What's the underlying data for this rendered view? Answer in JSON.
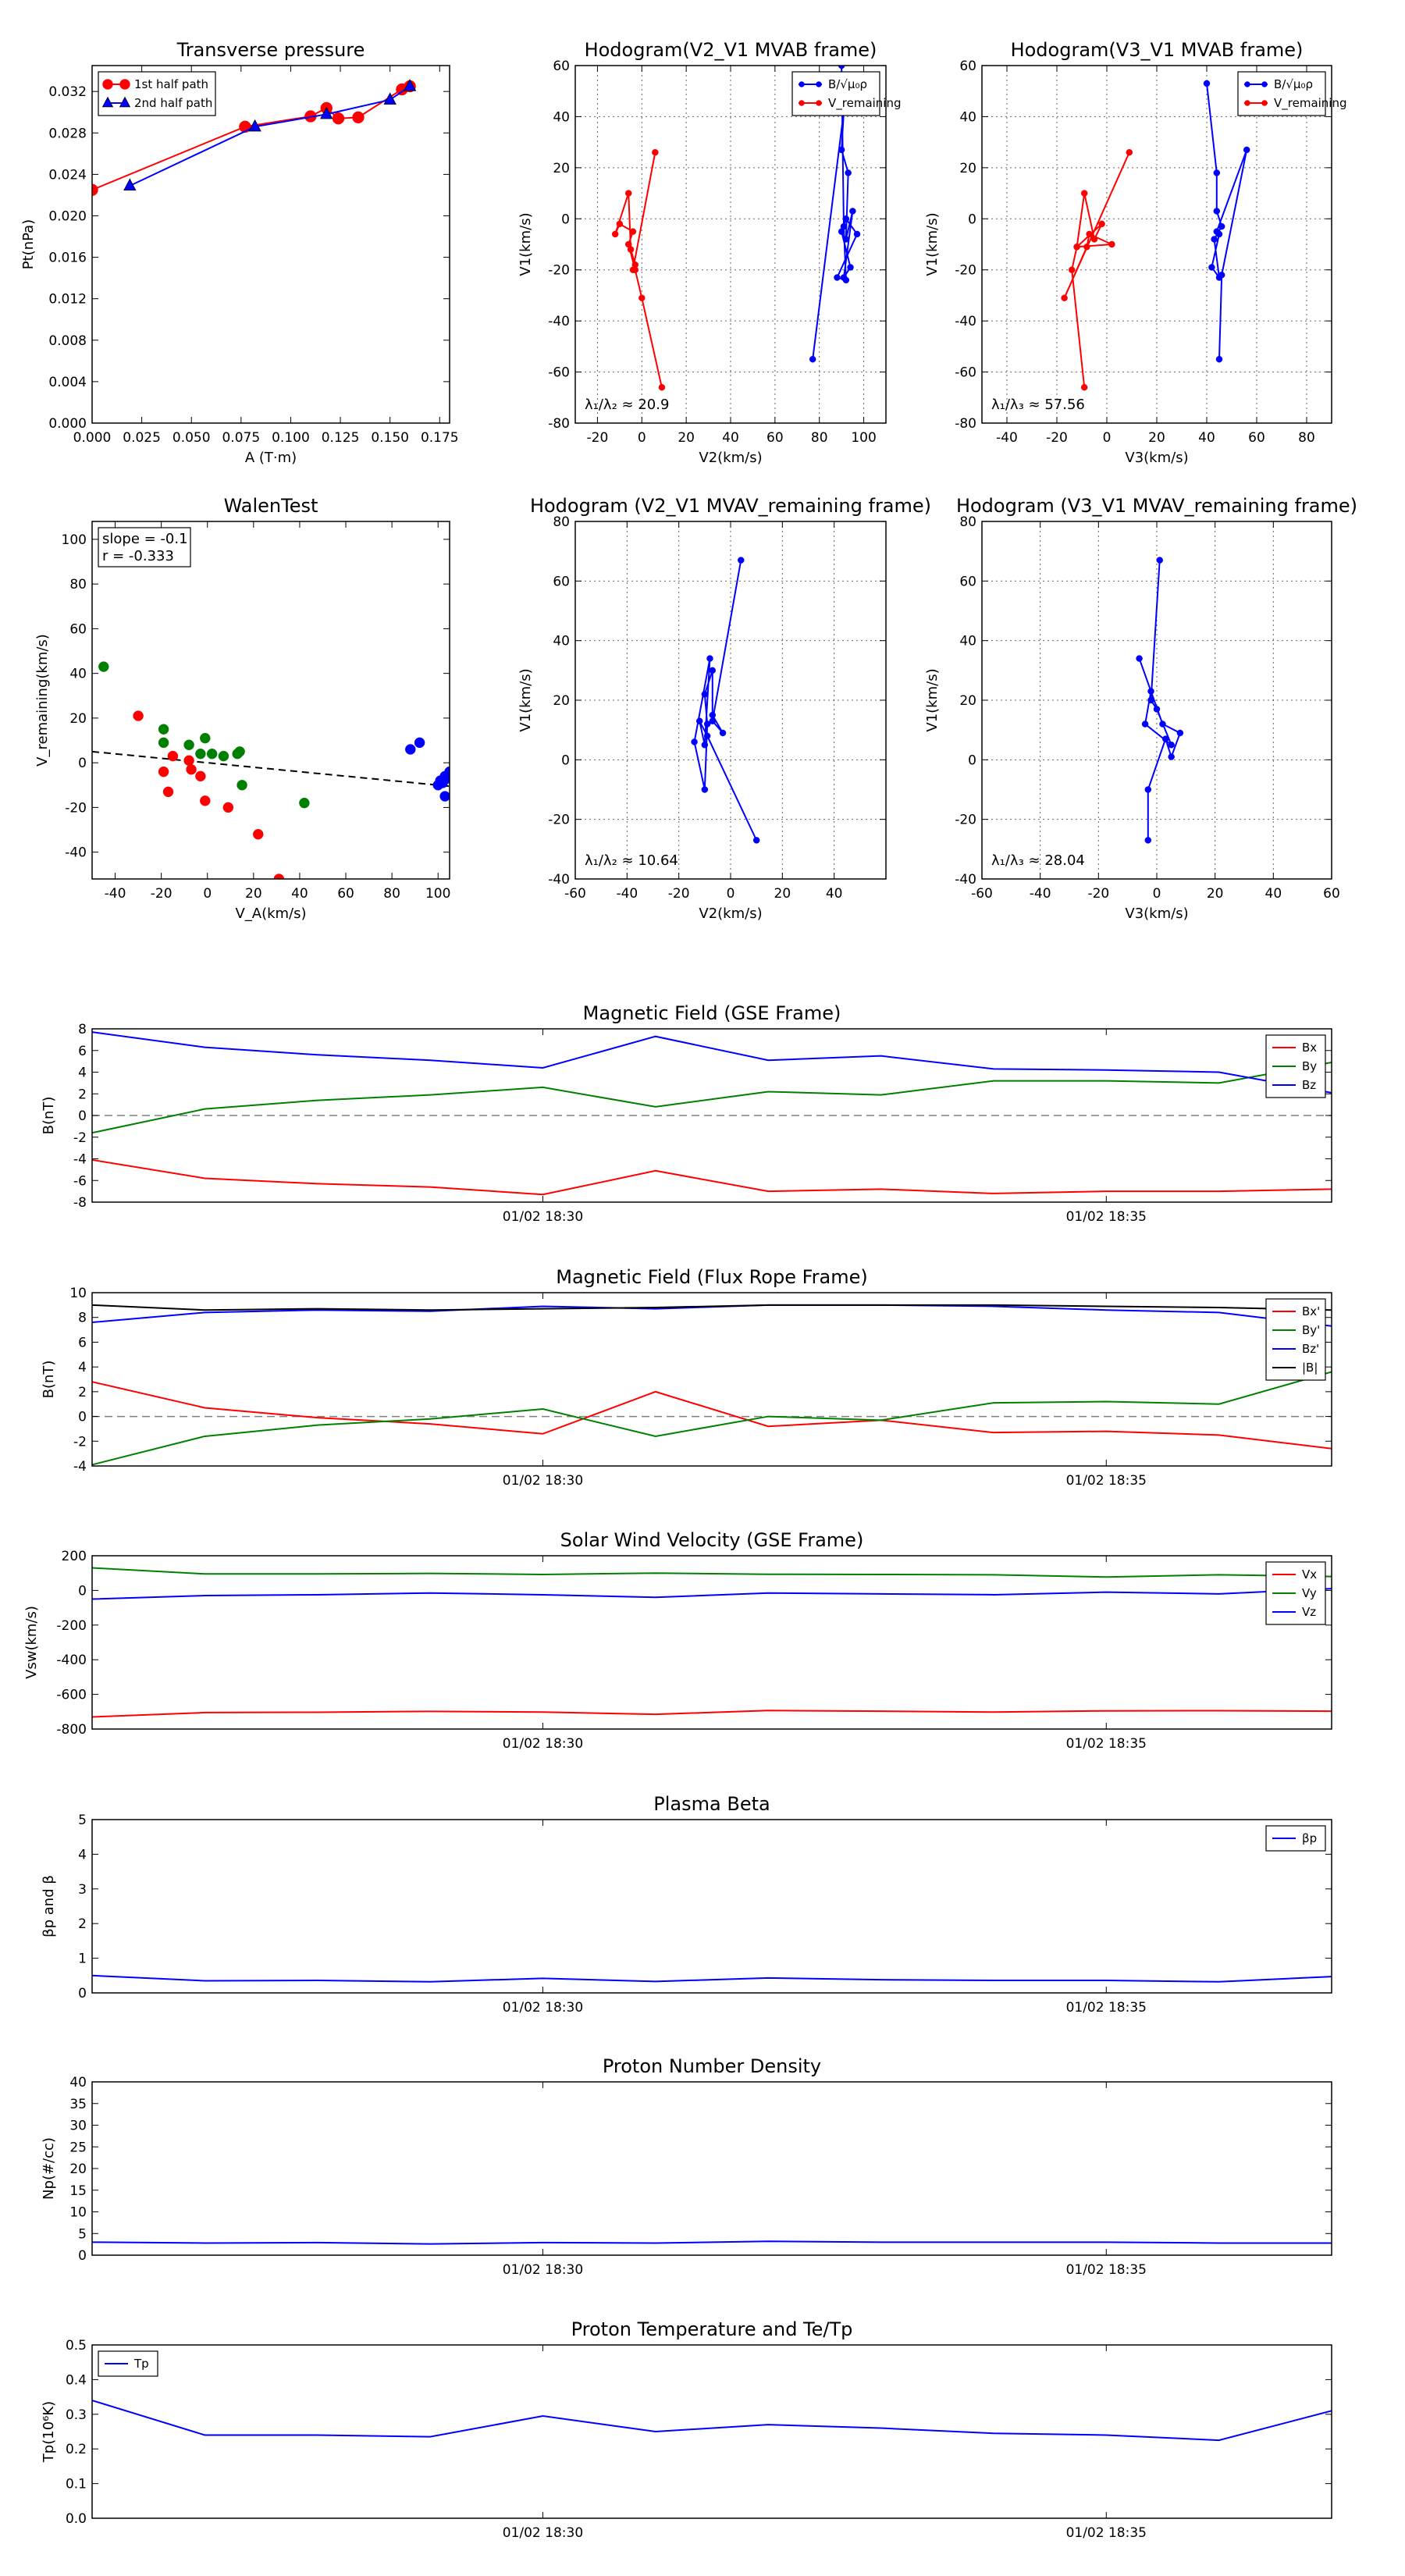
{
  "chart_data": [
    {
      "id": "tp",
      "type": "line",
      "title": "Transverse pressure",
      "xlabel": "A (T·m)",
      "ylabel": "Pt(nPa)",
      "xlim": [
        0,
        0.18
      ],
      "ylim": [
        0,
        0.0345
      ],
      "xticks": [
        0.0,
        0.025,
        0.05,
        0.075,
        0.1,
        0.125,
        0.15,
        0.175
      ],
      "xtick_labels": [
        "0.000",
        "0.025",
        "0.050",
        "0.075",
        "0.100",
        "0.125",
        "0.150",
        "0.175"
      ],
      "yticks": [
        0,
        0.004,
        0.008,
        0.012,
        0.016,
        0.02,
        0.024,
        0.028,
        0.032
      ],
      "ytick_labels": [
        "0.000",
        "0.004",
        "0.008",
        "0.012",
        "0.016",
        "0.020",
        "0.024",
        "0.028",
        "0.032"
      ],
      "grid": false,
      "legend": "top-left",
      "series": [
        {
          "name": "1st half path",
          "color": "#ff0000",
          "marker": "circle",
          "x": [
            0.0,
            0.077,
            0.11,
            0.118,
            0.124,
            0.134,
            0.156,
            0.16
          ],
          "y": [
            0.0225,
            0.0286,
            0.0296,
            0.0304,
            0.0294,
            0.0295,
            0.0322,
            0.0325
          ]
        },
        {
          "name": "2nd half path",
          "color": "#0000ff",
          "marker": "triangle",
          "x": [
            0.019,
            0.082,
            0.118,
            0.15,
            0.16
          ],
          "y": [
            0.0229,
            0.0286,
            0.0298,
            0.0312,
            0.0325
          ]
        }
      ]
    },
    {
      "id": "h1",
      "type": "line",
      "title": "Hodogram(V2_V1 MVAB frame)",
      "xlabel": "V2(km/s)",
      "ylabel": "V1(km/s)",
      "xlim": [
        -30,
        110
      ],
      "ylim": [
        -80,
        60
      ],
      "xticks": [
        -20,
        0,
        20,
        40,
        60,
        80,
        100
      ],
      "yticks": [
        -80,
        -60,
        -40,
        -20,
        0,
        20,
        40,
        60
      ],
      "grid": true,
      "legend": "top-right",
      "annotation": "λ₁/λ₂ ≈ 20.9",
      "series": [
        {
          "name": "B/√μ₀ρ",
          "color": "#0000ff",
          "marker": "circle",
          "x": [
            77,
            91,
            90,
            93,
            92,
            95,
            91,
            94,
            90,
            92,
            97,
            88,
            92,
            91,
            90
          ],
          "y": [
            -55,
            42,
            27,
            18,
            -8,
            3,
            -23,
            -19,
            -5,
            0,
            -6,
            -23,
            -24,
            -3,
            60
          ]
        },
        {
          "name": "V_remaining",
          "color": "#ff0000",
          "marker": "circle",
          "x": [
            9,
            0,
            -3,
            -6,
            -4,
            -10,
            -12,
            -6,
            -5,
            -3,
            -4,
            6
          ],
          "y": [
            -66,
            -31,
            -20,
            -10,
            -5,
            -2,
            -6,
            10,
            -12,
            -18,
            -20,
            26
          ]
        }
      ]
    },
    {
      "id": "h2",
      "type": "line",
      "title": "Hodogram(V3_V1 MVAB frame)",
      "xlabel": "V3(km/s)",
      "ylabel": "V1(km/s)",
      "xlim": [
        -50,
        90
      ],
      "ylim": [
        -80,
        60
      ],
      "xticks": [
        -40,
        -20,
        0,
        20,
        40,
        60,
        80
      ],
      "yticks": [
        -80,
        -60,
        -40,
        -20,
        0,
        20,
        40,
        60
      ],
      "grid": true,
      "legend": "top-right",
      "annotation": "λ₁/λ₃ ≈ 57.56",
      "series": [
        {
          "name": "B/√μ₀ρ",
          "color": "#0000ff",
          "marker": "circle",
          "x": [
            40,
            44,
            44,
            46,
            43,
            45,
            42,
            45,
            44,
            56,
            46,
            45
          ],
          "y": [
            53,
            18,
            3,
            -3,
            -8,
            -23,
            -19,
            -6,
            -5,
            27,
            -22,
            -55
          ]
        },
        {
          "name": "V_remaining",
          "color": "#ff0000",
          "marker": "circle",
          "x": [
            -9,
            -14,
            -12,
            -9,
            -5,
            -2,
            -12,
            2,
            -7,
            -8,
            -17,
            9
          ],
          "y": [
            -66,
            -20,
            -11,
            10,
            -8,
            -2,
            -11,
            -10,
            -6,
            -11,
            -31,
            26
          ]
        }
      ]
    },
    {
      "id": "walen",
      "type": "scatter",
      "title": "WalenTest",
      "xlabel": "V_A(km/s)",
      "ylabel": "V_remaining(km/s)",
      "xlim": [
        -50,
        105
      ],
      "ylim": [
        -52,
        108
      ],
      "xticks": [
        -40,
        -20,
        0,
        20,
        40,
        60,
        80,
        100
      ],
      "yticks": [
        -40,
        -20,
        0,
        20,
        40,
        60,
        80,
        100
      ],
      "grid": false,
      "annotation": [
        "slope = -0.1",
        "r = -0.333"
      ],
      "fit": {
        "slope": -0.1,
        "intercept": 0,
        "color": "#000000",
        "style": "dashed"
      },
      "series": [
        {
          "color": "#008000",
          "x": [
            -45,
            -19,
            -19,
            -8,
            -3,
            -1,
            2,
            7,
            13,
            14,
            15,
            42
          ],
          "y": [
            43,
            15,
            9,
            8,
            4,
            11,
            4,
            3,
            4,
            5,
            -10,
            -18
          ]
        },
        {
          "color": "#ff0000",
          "x": [
            -30,
            -15,
            -17,
            -19,
            -8,
            -7,
            -3,
            -1,
            9,
            22,
            31
          ],
          "y": [
            21,
            3,
            -13,
            -4,
            1,
            -3,
            -6,
            -17,
            -20,
            -32,
            -52
          ]
        },
        {
          "color": "#0000ff",
          "x": [
            88,
            92,
            100,
            101,
            102,
            103,
            104,
            103,
            105
          ],
          "y": [
            6,
            9,
            -10,
            -8,
            -9,
            -15,
            -7,
            -6,
            -4
          ]
        }
      ]
    },
    {
      "id": "h3",
      "type": "line",
      "title": "Hodogram (V2_V1 MVAV_remaining frame)",
      "xlabel": "V2(km/s)",
      "ylabel": "V1(km/s)",
      "xlim": [
        -60,
        60
      ],
      "ylim": [
        -40,
        80
      ],
      "xticks": [
        -60,
        -40,
        -20,
        0,
        20,
        40
      ],
      "yticks": [
        -40,
        -20,
        0,
        20,
        40,
        60,
        80
      ],
      "grid": true,
      "annotation": "λ₁/λ₂ ≈ 10.64",
      "series": [
        {
          "color": "#0000ff",
          "marker": "circle",
          "x": [
            10,
            -9,
            -12,
            -10,
            -8,
            -14,
            -10,
            -9,
            -10,
            -7,
            -7,
            -3,
            -7,
            4
          ],
          "y": [
            -27,
            8,
            13,
            5,
            34,
            6,
            -10,
            12,
            22,
            30,
            15,
            9,
            13,
            67
          ]
        }
      ]
    },
    {
      "id": "h4",
      "type": "line",
      "title": "Hodogram (V3_V1 MVAV_remaining frame)",
      "xlabel": "V3(km/s)",
      "ylabel": "V1(km/s)",
      "xlim": [
        -60,
        60
      ],
      "ylim": [
        -40,
        80
      ],
      "xticks": [
        -60,
        -40,
        -20,
        0,
        20,
        40,
        60
      ],
      "yticks": [
        -40,
        -20,
        0,
        20,
        40,
        60,
        80
      ],
      "grid": true,
      "annotation": "λ₁/λ₃ ≈ 28.04",
      "series": [
        {
          "color": "#0000ff",
          "marker": "circle",
          "x": [
            -3,
            -3,
            3,
            5,
            8,
            2,
            -6,
            -2,
            -4,
            5,
            0,
            -2,
            1
          ],
          "y": [
            -27,
            -10,
            7,
            1,
            9,
            12,
            34,
            23,
            12,
            5,
            17,
            20,
            67
          ]
        }
      ]
    },
    {
      "id": "bgse",
      "type": "line",
      "title": "Magnetic Field (GSE Frame)",
      "ylabel": "B(nT)",
      "xlim": [
        0,
        11
      ],
      "ylim": [
        -8,
        8
      ],
      "yticks": [
        -8,
        -6,
        -4,
        -2,
        0,
        2,
        4,
        6,
        8
      ],
      "time_ticks": [
        {
          "x": 4,
          "label": "01/02 18:30"
        },
        {
          "x": 9,
          "label": "01/02 18:35"
        }
      ],
      "zero_line": true,
      "legend": "top-right",
      "x": [
        0,
        1,
        2,
        3,
        4,
        5,
        6,
        7,
        8,
        9,
        10,
        11
      ],
      "series": [
        {
          "name": "Bx",
          "color": "#ff0000",
          "values": [
            -4.1,
            -5.8,
            -6.3,
            -6.6,
            -7.3,
            -5.1,
            -7.0,
            -6.8,
            -7.2,
            -7.0,
            -7.0,
            -6.8
          ]
        },
        {
          "name": "By",
          "color": "#008000",
          "values": [
            -1.6,
            0.6,
            1.4,
            1.9,
            2.6,
            0.8,
            2.2,
            1.9,
            3.2,
            3.2,
            3.0,
            4.9
          ]
        },
        {
          "name": "Bz",
          "color": "#0000ff",
          "values": [
            7.7,
            6.3,
            5.6,
            5.1,
            4.4,
            7.3,
            5.1,
            5.5,
            4.3,
            4.2,
            4.0,
            2.1
          ]
        }
      ]
    },
    {
      "id": "bfr",
      "type": "line",
      "title": "Magnetic Field (Flux Rope Frame)",
      "ylabel": "B(nT)",
      "xlim": [
        0,
        11
      ],
      "ylim": [
        -4,
        10
      ],
      "yticks": [
        -4,
        -2,
        0,
        2,
        4,
        6,
        8,
        10
      ],
      "time_ticks": [
        {
          "x": 4,
          "label": "01/02 18:30"
        },
        {
          "x": 9,
          "label": "01/02 18:35"
        }
      ],
      "zero_line": true,
      "legend": "top-right",
      "x": [
        0,
        1,
        2,
        3,
        4,
        5,
        6,
        7,
        8,
        9,
        10,
        11
      ],
      "series": [
        {
          "name": "Bx'",
          "color": "#ff0000",
          "values": [
            2.8,
            0.7,
            -0.1,
            -0.6,
            -1.4,
            2.0,
            -0.8,
            -0.3,
            -1.3,
            -1.2,
            -1.5,
            -2.6
          ]
        },
        {
          "name": "By'",
          "color": "#008000",
          "values": [
            -3.9,
            -1.6,
            -0.7,
            -0.2,
            0.6,
            -1.6,
            0.0,
            -0.3,
            1.1,
            1.2,
            1.0,
            3.6
          ]
        },
        {
          "name": "Bz'",
          "color": "#0000ff",
          "values": [
            7.6,
            8.4,
            8.6,
            8.5,
            8.9,
            8.7,
            9.0,
            9.0,
            8.9,
            8.6,
            8.4,
            7.3
          ]
        },
        {
          "name": "|B|",
          "color": "#000000",
          "values": [
            9.0,
            8.6,
            8.7,
            8.6,
            8.7,
            8.8,
            9.0,
            9.0,
            9.0,
            8.9,
            8.8,
            8.6
          ]
        }
      ]
    },
    {
      "id": "vsw",
      "type": "line",
      "title": "Solar Wind Velocity (GSE Frame)",
      "ylabel": "Vsw(km/s)",
      "xlim": [
        0,
        11
      ],
      "ylim": [
        -800,
        200
      ],
      "yticks": [
        -800,
        -600,
        -400,
        -200,
        0,
        200
      ],
      "time_ticks": [
        {
          "x": 4,
          "label": "01/02 18:30"
        },
        {
          "x": 9,
          "label": "01/02 18:35"
        }
      ],
      "legend": "top-right",
      "x": [
        0,
        1,
        2,
        3,
        4,
        5,
        6,
        7,
        8,
        9,
        10,
        11
      ],
      "series": [
        {
          "name": "Vx",
          "color": "#ff0000",
          "values": [
            -730,
            -705,
            -703,
            -698,
            -702,
            -715,
            -693,
            -697,
            -702,
            -695,
            -694,
            -697
          ]
        },
        {
          "name": "Vy",
          "color": "#008000",
          "values": [
            130,
            95,
            95,
            98,
            92,
            100,
            93,
            92,
            90,
            77,
            90,
            80
          ]
        },
        {
          "name": "Vz",
          "color": "#0000ff",
          "values": [
            -50,
            -30,
            -25,
            -15,
            -25,
            -40,
            -15,
            -20,
            -25,
            -10,
            -20,
            10
          ]
        }
      ]
    },
    {
      "id": "beta",
      "type": "line",
      "title": "Plasma Beta",
      "ylabel": "βp and β",
      "xlim": [
        0,
        11
      ],
      "ylim": [
        0,
        5
      ],
      "yticks": [
        0,
        1,
        2,
        3,
        4,
        5
      ],
      "time_ticks": [
        {
          "x": 4,
          "label": "01/02 18:30"
        },
        {
          "x": 9,
          "label": "01/02 18:35"
        }
      ],
      "legend": "top-right",
      "x": [
        0,
        1,
        2,
        3,
        4,
        5,
        6,
        7,
        8,
        9,
        10,
        11
      ],
      "series": [
        {
          "name": "βp",
          "color": "#0000ff",
          "values": [
            0.5,
            0.35,
            0.36,
            0.32,
            0.42,
            0.33,
            0.43,
            0.38,
            0.36,
            0.36,
            0.32,
            0.47
          ]
        }
      ]
    },
    {
      "id": "np",
      "type": "line",
      "title": "Proton Number Density",
      "ylabel": "Np(#/cc)",
      "xlim": [
        0,
        11
      ],
      "ylim": [
        0,
        40
      ],
      "yticks": [
        0,
        5,
        10,
        15,
        20,
        25,
        30,
        35,
        40
      ],
      "time_ticks": [
        {
          "x": 4,
          "label": "01/02 18:30"
        },
        {
          "x": 9,
          "label": "01/02 18:35"
        }
      ],
      "x": [
        0,
        1,
        2,
        3,
        4,
        5,
        6,
        7,
        8,
        9,
        10,
        11
      ],
      "series": [
        {
          "color": "#0000ff",
          "values": [
            3.0,
            2.8,
            2.9,
            2.6,
            2.9,
            2.8,
            3.2,
            3.0,
            3.0,
            3.0,
            2.8,
            2.8
          ]
        }
      ]
    },
    {
      "id": "tpt",
      "type": "line",
      "title": "Proton Temperature and Te/Tp",
      "ylabel": "Tp(10⁶K)",
      "xlim": [
        0,
        11
      ],
      "ylim": [
        0,
        0.5
      ],
      "yticks": [
        0,
        0.1,
        0.2,
        0.3,
        0.4,
        0.5
      ],
      "ytick_labels": [
        "0.0",
        "0.1",
        "0.2",
        "0.3",
        "0.4",
        "0.5"
      ],
      "time_ticks": [
        {
          "x": 4,
          "label": "01/02 18:30"
        },
        {
          "x": 9,
          "label": "01/02 18:35"
        }
      ],
      "legend": "top-left",
      "x": [
        0,
        1,
        2,
        3,
        4,
        5,
        6,
        7,
        8,
        9,
        10,
        11
      ],
      "series": [
        {
          "name": "Tp",
          "color": "#0000ff",
          "values": [
            0.34,
            0.24,
            0.24,
            0.235,
            0.295,
            0.25,
            0.27,
            0.26,
            0.245,
            0.24,
            0.225,
            0.31
          ]
        }
      ]
    }
  ]
}
